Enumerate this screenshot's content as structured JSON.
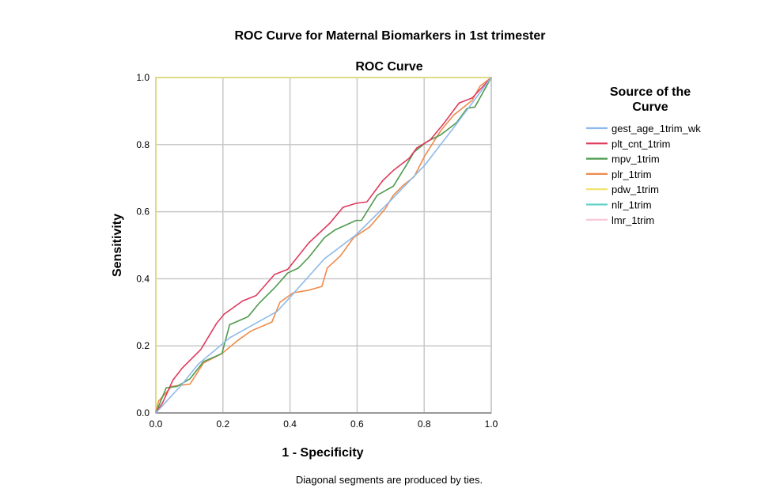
{
  "chart_data": {
    "type": "line",
    "title": "ROC Curve for Maternal Biomarkers in 1st trimester",
    "subtitle": "ROC Curve",
    "xlabel": "1 - Specificity",
    "ylabel": "Sensitivity",
    "xlim": [
      0,
      1
    ],
    "ylim": [
      0,
      1
    ],
    "xticks": [
      "0.0",
      "0.2",
      "0.4",
      "0.6",
      "0.8",
      "1.0"
    ],
    "yticks": [
      "0.0",
      "0.2",
      "0.4",
      "0.6",
      "0.8",
      "1.0"
    ],
    "grid": true,
    "legend_title": "Source of the Curve",
    "legend_placement": "right",
    "footnote": "Diagonal segments are produced by ties.",
    "series": [
      {
        "name": "gest_age_1trim_wk",
        "color": "#8fb9e8",
        "points": [
          [
            0,
            0
          ],
          [
            0.079,
            0.086
          ],
          [
            0.126,
            0.145
          ],
          [
            0.22,
            0.224
          ],
          [
            0.362,
            0.303
          ],
          [
            0.401,
            0.346
          ],
          [
            0.503,
            0.46
          ],
          [
            0.597,
            0.531
          ],
          [
            0.692,
            0.625
          ],
          [
            0.802,
            0.739
          ],
          [
            0.896,
            0.861
          ],
          [
            1,
            1
          ]
        ]
      },
      {
        "name": "plt_cnt_1trim",
        "color": "#de3a5e",
        "points": [
          [
            0,
            0
          ],
          [
            0.02,
            0.03
          ],
          [
            0.051,
            0.098
          ],
          [
            0.079,
            0.134
          ],
          [
            0.134,
            0.189
          ],
          [
            0.181,
            0.267
          ],
          [
            0.204,
            0.295
          ],
          [
            0.259,
            0.334
          ],
          [
            0.299,
            0.35
          ],
          [
            0.354,
            0.413
          ],
          [
            0.393,
            0.428
          ],
          [
            0.456,
            0.507
          ],
          [
            0.519,
            0.566
          ],
          [
            0.558,
            0.613
          ],
          [
            0.597,
            0.625
          ],
          [
            0.629,
            0.629
          ],
          [
            0.676,
            0.692
          ],
          [
            0.708,
            0.723
          ],
          [
            0.755,
            0.759
          ],
          [
            0.778,
            0.79
          ],
          [
            0.818,
            0.814
          ],
          [
            0.857,
            0.861
          ],
          [
            0.904,
            0.924
          ],
          [
            0.943,
            0.939
          ],
          [
            1,
            1
          ]
        ]
      },
      {
        "name": "mpv_1trim",
        "color": "#4e9a4e",
        "points": [
          [
            0,
            0
          ],
          [
            0.031,
            0.075
          ],
          [
            0.063,
            0.079
          ],
          [
            0.102,
            0.102
          ],
          [
            0.142,
            0.153
          ],
          [
            0.197,
            0.177
          ],
          [
            0.22,
            0.263
          ],
          [
            0.275,
            0.287
          ],
          [
            0.307,
            0.326
          ],
          [
            0.354,
            0.373
          ],
          [
            0.393,
            0.417
          ],
          [
            0.425,
            0.432
          ],
          [
            0.456,
            0.464
          ],
          [
            0.503,
            0.523
          ],
          [
            0.535,
            0.546
          ],
          [
            0.597,
            0.574
          ],
          [
            0.613,
            0.574
          ],
          [
            0.66,
            0.649
          ],
          [
            0.708,
            0.676
          ],
          [
            0.747,
            0.739
          ],
          [
            0.77,
            0.778
          ],
          [
            0.81,
            0.81
          ],
          [
            0.849,
            0.829
          ],
          [
            0.896,
            0.865
          ],
          [
            0.928,
            0.908
          ],
          [
            0.951,
            0.912
          ],
          [
            1,
            1
          ]
        ]
      },
      {
        "name": "plr_1trim",
        "color": "#f08a4b",
        "points": [
          [
            0,
            0
          ],
          [
            0.008,
            0.035
          ],
          [
            0.047,
            0.079
          ],
          [
            0.102,
            0.086
          ],
          [
            0.142,
            0.149
          ],
          [
            0.197,
            0.177
          ],
          [
            0.244,
            0.216
          ],
          [
            0.283,
            0.244
          ],
          [
            0.346,
            0.271
          ],
          [
            0.37,
            0.33
          ],
          [
            0.409,
            0.358
          ],
          [
            0.456,
            0.366
          ],
          [
            0.495,
            0.377
          ],
          [
            0.511,
            0.432
          ],
          [
            0.55,
            0.468
          ],
          [
            0.59,
            0.523
          ],
          [
            0.637,
            0.554
          ],
          [
            0.684,
            0.609
          ],
          [
            0.708,
            0.649
          ],
          [
            0.739,
            0.68
          ],
          [
            0.77,
            0.704
          ],
          [
            0.802,
            0.767
          ],
          [
            0.849,
            0.841
          ],
          [
            0.888,
            0.888
          ],
          [
            0.943,
            0.932
          ],
          [
            0.967,
            0.975
          ],
          [
            1,
            1
          ]
        ]
      },
      {
        "name": "pdw_1trim",
        "color": "#efe26a",
        "points": [
          [
            0,
            0
          ],
          [
            0,
            1
          ],
          [
            1,
            1
          ]
        ]
      },
      {
        "name": "nlr_1trim",
        "color": "#62d2c9",
        "points": [
          [
            0,
            0
          ],
          [
            0,
            1
          ],
          [
            1,
            1
          ]
        ]
      },
      {
        "name": "lmr_1trim",
        "color": "#f6c6d6",
        "points": [
          [
            0,
            0
          ],
          [
            0,
            1
          ],
          [
            1,
            1
          ]
        ]
      }
    ]
  }
}
